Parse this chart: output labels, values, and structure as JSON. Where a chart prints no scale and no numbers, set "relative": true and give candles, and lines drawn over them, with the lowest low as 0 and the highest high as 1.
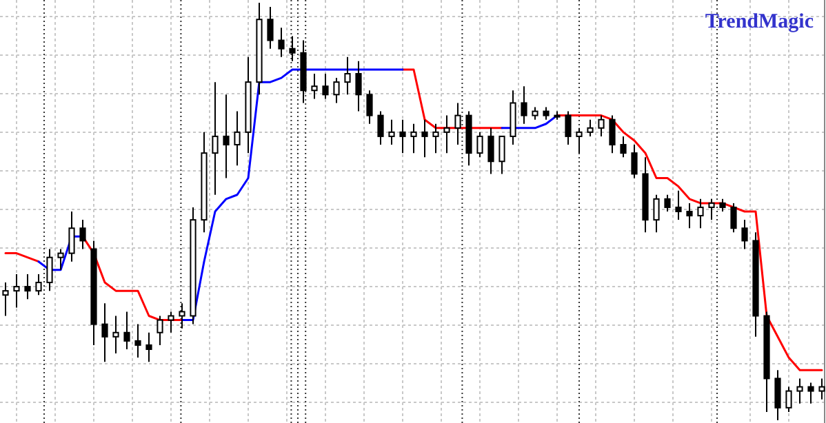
{
  "chart_data": {
    "type": "candlestick",
    "title": "TrendMagic",
    "relative": true,
    "grid": true,
    "categories": [
      null,
      null,
      null,
      null,
      null,
      null,
      null,
      null,
      null,
      null,
      null,
      null,
      null,
      null,
      null,
      null,
      null,
      null,
      null,
      null,
      null,
      null,
      null,
      null,
      null,
      null,
      null,
      null,
      null,
      null,
      null,
      null,
      null,
      null,
      null,
      null,
      null,
      null,
      null,
      null,
      null,
      null,
      null,
      null,
      null,
      null,
      null,
      null,
      null,
      null,
      null,
      null,
      null,
      null,
      null,
      null,
      null,
      null,
      null,
      null,
      null,
      null,
      null,
      null,
      null,
      null,
      null,
      null,
      null,
      null,
      null,
      null,
      null,
      null,
      null
    ],
    "ohlc": [
      [
        0.3,
        0.33,
        0.25,
        0.31
      ],
      [
        0.31,
        0.35,
        0.27,
        0.32
      ],
      [
        0.32,
        0.35,
        0.29,
        0.31
      ],
      [
        0.31,
        0.35,
        0.3,
        0.33
      ],
      [
        0.33,
        0.41,
        0.31,
        0.39
      ],
      [
        0.39,
        0.41,
        0.36,
        0.4
      ],
      [
        0.4,
        0.5,
        0.38,
        0.46
      ],
      [
        0.46,
        0.48,
        0.41,
        0.43
      ],
      [
        0.41,
        0.43,
        0.18,
        0.23
      ],
      [
        0.23,
        0.28,
        0.14,
        0.2
      ],
      [
        0.2,
        0.25,
        0.16,
        0.21
      ],
      [
        0.21,
        0.26,
        0.17,
        0.19
      ],
      [
        0.19,
        0.23,
        0.15,
        0.18
      ],
      [
        0.18,
        0.21,
        0.14,
        0.17
      ],
      [
        0.21,
        0.25,
        0.18,
        0.24
      ],
      [
        0.24,
        0.26,
        0.21,
        0.25
      ],
      [
        0.25,
        0.28,
        0.22,
        0.26
      ],
      [
        0.25,
        0.51,
        0.23,
        0.48
      ],
      [
        0.48,
        0.69,
        0.45,
        0.64
      ],
      [
        0.64,
        0.81,
        0.54,
        0.68
      ],
      [
        0.68,
        0.78,
        0.58,
        0.66
      ],
      [
        0.66,
        0.74,
        0.61,
        0.69
      ],
      [
        0.69,
        0.87,
        0.64,
        0.81
      ],
      [
        0.81,
        1,
        0.78,
        0.96
      ],
      [
        0.96,
        0.99,
        0.89,
        0.91
      ],
      [
        0.91,
        0.94,
        0.87,
        0.89
      ],
      [
        0.89,
        0.92,
        0.86,
        0.88
      ],
      [
        0.88,
        0.91,
        0.76,
        0.79
      ],
      [
        0.79,
        0.83,
        0.77,
        0.8
      ],
      [
        0.8,
        0.83,
        0.77,
        0.78
      ],
      [
        0.78,
        0.82,
        0.76,
        0.81
      ],
      [
        0.81,
        0.87,
        0.78,
        0.83
      ],
      [
        0.83,
        0.86,
        0.74,
        0.78
      ],
      [
        0.78,
        0.79,
        0.71,
        0.73
      ],
      [
        0.73,
        0.74,
        0.66,
        0.68
      ],
      [
        0.68,
        0.72,
        0.66,
        0.69
      ],
      [
        0.69,
        0.72,
        0.64,
        0.68
      ],
      [
        0.68,
        0.71,
        0.64,
        0.69
      ],
      [
        0.69,
        0.72,
        0.63,
        0.68
      ],
      [
        0.68,
        0.71,
        0.64,
        0.69
      ],
      [
        0.69,
        0.73,
        0.64,
        0.7
      ],
      [
        0.7,
        0.76,
        0.66,
        0.73
      ],
      [
        0.73,
        0.74,
        0.61,
        0.64
      ],
      [
        0.64,
        0.69,
        0.63,
        0.68
      ],
      [
        0.68,
        0.7,
        0.59,
        0.62
      ],
      [
        0.62,
        0.68,
        0.59,
        0.68
      ],
      [
        0.68,
        0.79,
        0.66,
        0.76
      ],
      [
        0.76,
        0.8,
        0.71,
        0.73
      ],
      [
        0.73,
        0.75,
        0.72,
        0.74
      ],
      [
        0.74,
        0.75,
        0.72,
        0.73
      ],
      [
        0.73,
        0.74,
        0.72,
        0.73
      ],
      [
        0.73,
        0.74,
        0.66,
        0.68
      ],
      [
        0.68,
        0.7,
        0.64,
        0.69
      ],
      [
        0.69,
        0.72,
        0.68,
        0.7
      ],
      [
        0.7,
        0.73,
        0.68,
        0.72
      ],
      [
        0.72,
        0.73,
        0.64,
        0.66
      ],
      [
        0.66,
        0.68,
        0.63,
        0.64
      ],
      [
        0.64,
        0.66,
        0.58,
        0.59
      ],
      [
        0.59,
        0.63,
        0.45,
        0.48
      ],
      [
        0.48,
        0.54,
        0.45,
        0.53
      ],
      [
        0.53,
        0.54,
        0.5,
        0.51
      ],
      [
        0.51,
        0.55,
        0.48,
        0.5
      ],
      [
        0.5,
        0.52,
        0.46,
        0.49
      ],
      [
        0.49,
        0.53,
        0.46,
        0.51
      ],
      [
        0.51,
        0.53,
        0.48,
        0.52
      ],
      [
        0.52,
        0.53,
        0.5,
        0.51
      ],
      [
        0.51,
        0.52,
        0.45,
        0.46
      ],
      [
        0.46,
        0.48,
        0.41,
        0.43
      ],
      [
        0.43,
        0.45,
        0.2,
        0.25
      ],
      [
        0.25,
        0.26,
        0.02,
        0.1
      ],
      [
        0.1,
        0.12,
        0,
        0.03
      ],
      [
        0.03,
        0.08,
        0.02,
        0.07
      ],
      [
        0.07,
        0.1,
        0.04,
        0.08
      ],
      [
        0.08,
        0.09,
        0.04,
        0.07
      ],
      [
        0.07,
        0.1,
        0.05,
        0.08
      ]
    ],
    "series": [
      {
        "type": "line",
        "color": "#ff0000",
        "values": [
          0.4,
          0.4,
          0.39,
          0.38,
          null,
          null,
          null,
          0.44,
          0.4,
          0.33,
          0.31,
          0.31,
          0.31,
          0.25,
          0.24,
          0.24,
          0.24,
          null,
          null,
          null,
          null,
          null,
          null,
          null,
          null,
          null,
          null,
          null,
          null,
          null,
          null,
          null,
          null,
          null,
          null,
          null,
          0.84,
          0.84,
          0.72,
          0.7,
          0.7,
          0.7,
          0.7,
          0.7,
          0.7,
          0.7,
          null,
          null,
          null,
          null,
          0.73,
          0.73,
          0.73,
          0.73,
          0.73,
          0.72,
          0.69,
          0.67,
          0.64,
          0.58,
          0.58,
          0.56,
          0.53,
          0.52,
          0.52,
          0.52,
          0.51,
          0.5,
          0.5,
          0.25,
          0.2,
          0.15,
          0.12,
          0.12,
          0.12
        ]
      },
      {
        "type": "line",
        "color": "#0000ff",
        "values": [
          null,
          null,
          null,
          0.38,
          0.36,
          0.36,
          0.44,
          0.44,
          null,
          null,
          null,
          null,
          null,
          null,
          null,
          null,
          0.24,
          0.24,
          0.38,
          0.5,
          0.53,
          0.54,
          0.58,
          0.81,
          0.81,
          0.82,
          0.84,
          0.84,
          0.84,
          0.84,
          0.84,
          0.84,
          0.84,
          0.84,
          0.84,
          0.84,
          0.84,
          null,
          null,
          null,
          null,
          null,
          null,
          null,
          null,
          0.7,
          0.7,
          0.7,
          0.7,
          0.71,
          0.73,
          null,
          null,
          null,
          null,
          null,
          null,
          null,
          null,
          null,
          null,
          null,
          null,
          null,
          null,
          null,
          null,
          null,
          null,
          null,
          null,
          null,
          null,
          null,
          null
        ]
      }
    ]
  }
}
